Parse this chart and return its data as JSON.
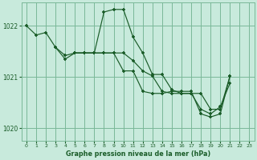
{
  "background_color": "#c8eadc",
  "plot_bg_color": "#c8eadc",
  "grid_color": "#7ab898",
  "line_color": "#1a5c28",
  "marker_color": "#1a5c28",
  "title": "Graphe pression niveau de la mer (hPa)",
  "xlim": [
    -0.5,
    23.5
  ],
  "ylim": [
    1019.75,
    1022.45
  ],
  "yticks": [
    1020,
    1021,
    1022
  ],
  "xticks": [
    0,
    1,
    2,
    3,
    4,
    5,
    6,
    7,
    8,
    9,
    10,
    11,
    12,
    13,
    14,
    15,
    16,
    17,
    18,
    19,
    20,
    21,
    22,
    23
  ],
  "series": [
    {
      "x": [
        0,
        1,
        2,
        3,
        4,
        5,
        6
      ],
      "y": [
        1022.0,
        1021.82,
        1021.87,
        1021.58,
        1021.35,
        1021.47,
        1021.47
      ]
    },
    {
      "x": [
        3,
        4,
        5,
        6,
        7,
        8,
        9,
        10,
        11,
        12,
        13,
        14,
        15,
        16,
        17,
        18,
        19,
        20,
        21
      ],
      "y": [
        1021.58,
        1021.42,
        1021.47,
        1021.47,
        1021.47,
        1022.27,
        1022.32,
        1022.32,
        1021.78,
        1021.47,
        1021.05,
        1021.05,
        1020.75,
        1020.68,
        1020.68,
        1020.68,
        1020.37,
        1020.37,
        1021.02
      ]
    },
    {
      "x": [
        5,
        6,
        7,
        8,
        9,
        10,
        11,
        12,
        13,
        14,
        15,
        16,
        17,
        18,
        19,
        20,
        21
      ],
      "y": [
        1021.47,
        1021.47,
        1021.47,
        1021.47,
        1021.47,
        1021.47,
        1021.32,
        1021.12,
        1021.02,
        1020.72,
        1020.68,
        1020.68,
        1020.68,
        1020.37,
        1020.28,
        1020.42,
        1020.88
      ]
    },
    {
      "x": [
        6,
        7,
        8,
        9,
        10,
        11,
        12,
        13,
        14,
        15,
        16,
        17,
        18,
        19,
        20,
        21
      ],
      "y": [
        1021.47,
        1021.47,
        1021.47,
        1021.47,
        1021.12,
        1021.12,
        1020.72,
        1020.68,
        1020.68,
        1020.72,
        1020.72,
        1020.72,
        1020.28,
        1020.22,
        1020.28,
        1021.02
      ]
    }
  ]
}
